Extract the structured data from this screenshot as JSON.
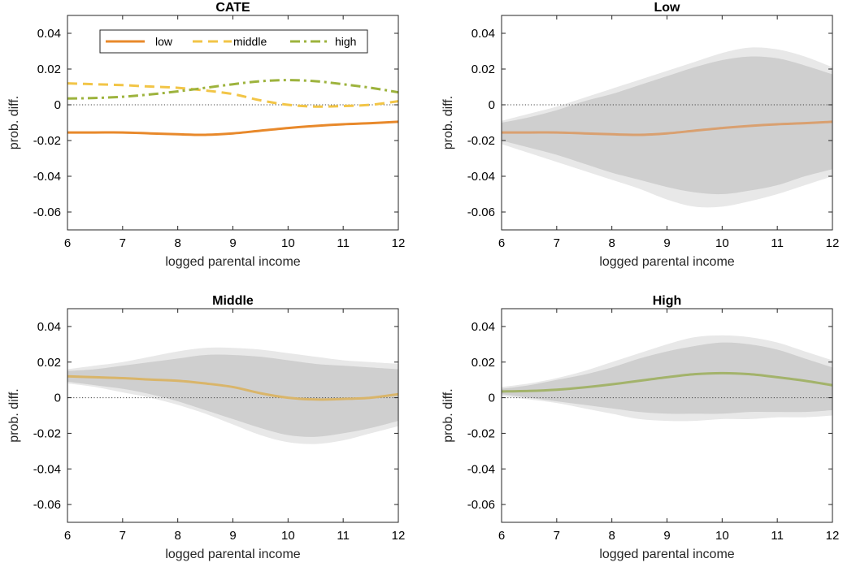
{
  "chart_data": [
    {
      "type": "line",
      "title": "CATE",
      "xlabel": "logged parental income",
      "ylabel": "prob. diff.",
      "xlim": [
        6,
        12
      ],
      "ylim": [
        -0.07,
        0.05
      ],
      "xticks": [
        6,
        7,
        8,
        9,
        10,
        11,
        12
      ],
      "yticks": [
        -0.06,
        -0.04,
        -0.02,
        0,
        0.02,
        0.04
      ],
      "ytick_labels": [
        "-0.06",
        "-0.04",
        "-0.02",
        "0",
        "0.02",
        "0.04"
      ],
      "zero_line": true,
      "legend": "top",
      "x": [
        6,
        6.5,
        7,
        7.5,
        8,
        8.5,
        9,
        9.5,
        10,
        10.5,
        11,
        11.5,
        12
      ],
      "series": [
        {
          "name": "low",
          "color": "#E8892B",
          "style": "solid",
          "values": [
            -0.0155,
            -0.0155,
            -0.0155,
            -0.016,
            -0.0165,
            -0.0168,
            -0.016,
            -0.0145,
            -0.013,
            -0.0118,
            -0.0109,
            -0.0103,
            -0.0095
          ]
        },
        {
          "name": "middle",
          "color": "#F2C547",
          "style": "dashed",
          "values": [
            0.012,
            0.0115,
            0.011,
            0.0102,
            0.0095,
            0.008,
            0.006,
            0.0025,
            0,
            -0.001,
            -0.0007,
            0,
            0.002
          ]
        },
        {
          "name": "high",
          "color": "#9DB33D",
          "style": "dashdot",
          "values": [
            0.0035,
            0.0038,
            0.0045,
            0.0058,
            0.0075,
            0.0095,
            0.0115,
            0.0132,
            0.0138,
            0.0132,
            0.0115,
            0.0095,
            0.007
          ]
        }
      ]
    },
    {
      "type": "area",
      "title": "Low",
      "xlabel": "logged parental income",
      "ylabel": "prob. diff.",
      "xlim": [
        6,
        12
      ],
      "ylim": [
        -0.07,
        0.05
      ],
      "xticks": [
        6,
        7,
        8,
        9,
        10,
        11,
        12
      ],
      "yticks": [
        -0.06,
        -0.04,
        -0.02,
        0,
        0.02,
        0.04
      ],
      "ytick_labels": [
        "-0.06",
        "-0.04",
        "-0.02",
        "0",
        "0.02",
        "0.04"
      ],
      "zero_line": true,
      "x": [
        6,
        6.5,
        7,
        7.5,
        8,
        8.5,
        9,
        9.5,
        10,
        10.5,
        11,
        11.5,
        12
      ],
      "line": {
        "color": "#D9A070",
        "values": [
          -0.0155,
          -0.0155,
          -0.0155,
          -0.016,
          -0.0165,
          -0.0168,
          -0.016,
          -0.0145,
          -0.013,
          -0.0118,
          -0.0109,
          -0.0103,
          -0.0095
        ]
      },
      "band_outer": {
        "color": "#E8E8E8",
        "upper": [
          -0.009,
          -0.005,
          -0.001,
          0.004,
          0.009,
          0.014,
          0.019,
          0.024,
          0.029,
          0.032,
          0.031,
          0.027,
          0.021
        ],
        "lower": [
          -0.022,
          -0.027,
          -0.032,
          -0.037,
          -0.042,
          -0.047,
          -0.053,
          -0.057,
          -0.057,
          -0.054,
          -0.05,
          -0.045,
          -0.04
        ]
      },
      "band_inner": {
        "color": "#CFCFCF",
        "upper": [
          -0.01,
          -0.007,
          -0.003,
          0.002,
          0.006,
          0.011,
          0.016,
          0.021,
          0.025,
          0.027,
          0.026,
          0.022,
          0.017
        ],
        "lower": [
          -0.02,
          -0.024,
          -0.028,
          -0.033,
          -0.038,
          -0.042,
          -0.046,
          -0.049,
          -0.05,
          -0.048,
          -0.045,
          -0.04,
          -0.036
        ]
      }
    },
    {
      "type": "area",
      "title": "Middle",
      "xlabel": "logged parental income",
      "ylabel": "prob. diff.",
      "xlim": [
        6,
        12
      ],
      "ylim": [
        -0.07,
        0.05
      ],
      "xticks": [
        6,
        7,
        8,
        9,
        10,
        11,
        12
      ],
      "yticks": [
        -0.06,
        -0.04,
        -0.02,
        0,
        0.02,
        0.04
      ],
      "ytick_labels": [
        "-0.06",
        "-0.04",
        "-0.02",
        "0",
        "0.02",
        "0.04"
      ],
      "zero_line": true,
      "x": [
        6,
        6.5,
        7,
        7.5,
        8,
        8.5,
        9,
        9.5,
        10,
        10.5,
        11,
        11.5,
        12
      ],
      "line": {
        "color": "#D9B56A",
        "values": [
          0.012,
          0.0115,
          0.011,
          0.0102,
          0.0095,
          0.008,
          0.006,
          0.0025,
          0,
          -0.001,
          -0.0007,
          0,
          0.002
        ]
      },
      "band_outer": {
        "color": "#E8E8E8",
        "upper": [
          0.016,
          0.018,
          0.02,
          0.023,
          0.026,
          0.028,
          0.028,
          0.027,
          0.025,
          0.023,
          0.021,
          0.02,
          0.019
        ],
        "lower": [
          0.008,
          0.006,
          0.003,
          0.0,
          -0.004,
          -0.009,
          -0.015,
          -0.021,
          -0.025,
          -0.026,
          -0.024,
          -0.02,
          -0.016
        ]
      },
      "band_inner": {
        "color": "#CFCFCF",
        "upper": [
          0.015,
          0.016,
          0.018,
          0.02,
          0.022,
          0.024,
          0.024,
          0.023,
          0.021,
          0.019,
          0.018,
          0.017,
          0.016
        ],
        "lower": [
          0.009,
          0.007,
          0.005,
          0.002,
          -0.002,
          -0.007,
          -0.012,
          -0.017,
          -0.021,
          -0.022,
          -0.02,
          -0.017,
          -0.013
        ]
      }
    },
    {
      "type": "area",
      "title": "High",
      "xlabel": "logged parental income",
      "ylabel": "prob. diff.",
      "xlim": [
        6,
        12
      ],
      "ylim": [
        -0.07,
        0.05
      ],
      "xticks": [
        6,
        7,
        8,
        9,
        10,
        11,
        12
      ],
      "yticks": [
        -0.06,
        -0.04,
        -0.02,
        0,
        0.02,
        0.04
      ],
      "ytick_labels": [
        "-0.06",
        "-0.04",
        "-0.02",
        "0",
        "0.02",
        "0.04"
      ],
      "zero_line": true,
      "x": [
        6,
        6.5,
        7,
        7.5,
        8,
        8.5,
        9,
        9.5,
        10,
        10.5,
        11,
        11.5,
        12
      ],
      "line": {
        "color": "#A3B36B",
        "values": [
          0.0035,
          0.0038,
          0.0045,
          0.0058,
          0.0075,
          0.0095,
          0.0115,
          0.0132,
          0.0138,
          0.0132,
          0.0115,
          0.0095,
          0.007
        ]
      },
      "band_outer": {
        "color": "#E8E8E8",
        "upper": [
          0.006,
          0.008,
          0.011,
          0.015,
          0.02,
          0.025,
          0.03,
          0.034,
          0.035,
          0.034,
          0.031,
          0.026,
          0.021
        ],
        "lower": [
          0.001,
          -0.001,
          -0.003,
          -0.006,
          -0.009,
          -0.012,
          -0.013,
          -0.013,
          -0.012,
          -0.012,
          -0.011,
          -0.011,
          -0.01
        ]
      },
      "band_inner": {
        "color": "#CFCFCF",
        "upper": [
          0.005,
          0.007,
          0.01,
          0.013,
          0.017,
          0.022,
          0.026,
          0.029,
          0.031,
          0.03,
          0.027,
          0.022,
          0.017
        ],
        "lower": [
          0.002,
          0.0,
          -0.002,
          -0.004,
          -0.006,
          -0.008,
          -0.009,
          -0.009,
          -0.009,
          -0.008,
          -0.008,
          -0.008,
          -0.007
        ]
      }
    }
  ]
}
